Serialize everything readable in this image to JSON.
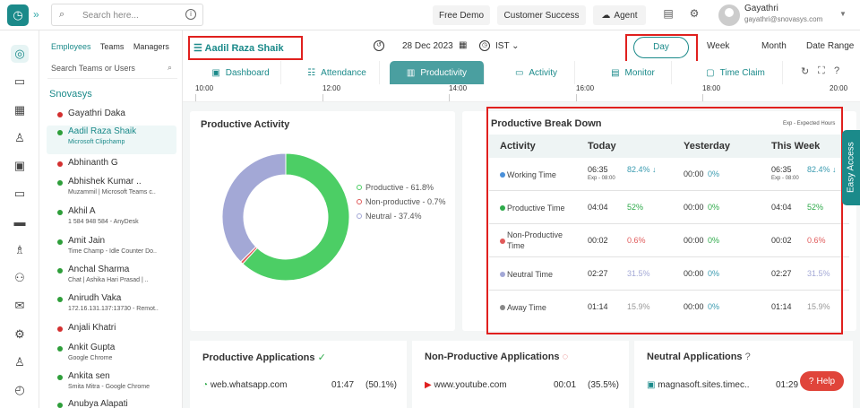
{
  "topbar": {
    "search_placeholder": "Search here...",
    "free_demo": "Free Demo",
    "customer_success": "Customer Success",
    "agent": "Agent",
    "user_name": "Gayathri",
    "user_email": "gayathri@snovasys.com"
  },
  "employee_panel": {
    "tabs": [
      "Employees",
      "Teams",
      "Managers"
    ],
    "search_placeholder": "Search Teams or Users",
    "team_name": "Snovasys",
    "employees": [
      {
        "name": "Gayathri Daka",
        "sub": "",
        "status_color": "#d32f2f"
      },
      {
        "name": "Aadil Raza Shaik",
        "sub": "Microsoft Clipchamp",
        "status_color": "#2e9e3a"
      },
      {
        "name": "Abhinanth G",
        "sub": "",
        "status_color": "#d32f2f"
      },
      {
        "name": "Abhishek Kumar ..",
        "sub": "Muzammil | Microsoft Teams c..",
        "status_color": "#2e9e3a"
      },
      {
        "name": "Akhil A",
        "sub": "1 584 948 584 - AnyDesk",
        "status_color": "#2e9e3a"
      },
      {
        "name": "Amit Jain",
        "sub": "Time Champ - Idle Counter Do..",
        "status_color": "#2e9e3a"
      },
      {
        "name": "Anchal Sharma",
        "sub": "Chat | Ashika Hari Prasad | ..",
        "status_color": "#2e9e3a"
      },
      {
        "name": "Anirudh Vaka",
        "sub": "172.16.131.137:13730 - Remot..",
        "status_color": "#2e9e3a"
      },
      {
        "name": "Anjali Khatri",
        "sub": "",
        "status_color": "#d32f2f"
      },
      {
        "name": "Ankit Gupta",
        "sub": "Google Chrome",
        "status_color": "#2e9e3a"
      },
      {
        "name": "Ankita sen",
        "sub": "Smita Mitra - Google Chrome",
        "status_color": "#2e9e3a"
      },
      {
        "name": "Anubya Alapati",
        "sub": "",
        "status_color": "#2e9e3a"
      }
    ]
  },
  "header": {
    "selected_user": "Aadil Raza Shaik",
    "date": "28 Dec 2023",
    "timezone": "IST",
    "periods": [
      "Day",
      "Week",
      "Month",
      "Date Range"
    ]
  },
  "tabs": [
    "Dashboard",
    "Attendance",
    "Productivity",
    "Activity",
    "Monitor",
    "Time Claim"
  ],
  "timeline": [
    "10:00",
    "12:00",
    "14:00",
    "16:00",
    "18:00",
    "20:00"
  ],
  "productive_activity": {
    "title": "Productive Activity",
    "legend": [
      {
        "label": "Productive - 61.8%",
        "color": "#4cce65"
      },
      {
        "label": "Non-productive - 0.7%",
        "color": "#e05a5a"
      },
      {
        "label": "Neutral - 37.4%",
        "color": "#a3a8d6"
      }
    ]
  },
  "chart_data": {
    "type": "pie",
    "title": "Productive Activity",
    "categories": [
      "Productive",
      "Non-productive",
      "Neutral"
    ],
    "values": [
      61.8,
      0.7,
      37.4
    ]
  },
  "breakdown": {
    "title": "Productive Break Down",
    "note": "Exp - Expected Hours",
    "headers": [
      "Activity",
      "Today",
      "Yesterday",
      "This Week"
    ],
    "rows": [
      {
        "activity": "Working Time",
        "color": "#4a90d9",
        "today": "06:35",
        "today_pct": "82.4% ↓",
        "today_exp": "Exp - 08:00",
        "yday": "00:00",
        "yday_pct": "0%",
        "week": "06:35",
        "week_pct": "82.4% ↓",
        "week_exp": "Exp - 08:00"
      },
      {
        "activity": "Productive Time",
        "color": "#2eaa4a",
        "today": "04:04",
        "today_pct": "52%",
        "today_exp": "",
        "yday": "00:00",
        "yday_pct": "0%",
        "week": "04:04",
        "week_pct": "52%",
        "week_exp": ""
      },
      {
        "activity": "Non-Productive Time",
        "color": "#e05a5a",
        "today": "00:02",
        "today_pct": "0.6%",
        "today_exp": "",
        "yday": "00:00",
        "yday_pct": "0%",
        "week": "00:02",
        "week_pct": "0.6%",
        "week_exp": ""
      },
      {
        "activity": "Neutral Time",
        "color": "#a3a8d6",
        "today": "02:27",
        "today_pct": "31.5%",
        "today_exp": "",
        "yday": "00:00",
        "yday_pct": "0%",
        "week": "02:27",
        "week_pct": "31.5%",
        "week_exp": ""
      },
      {
        "activity": "Away Time",
        "color": "#888888",
        "today": "01:14",
        "today_pct": "15.9%",
        "today_exp": "",
        "yday": "00:00",
        "yday_pct": "0%",
        "week": "01:14",
        "week_pct": "15.9%",
        "week_exp": ""
      }
    ]
  },
  "apps": {
    "productive": {
      "title": "Productive Applications",
      "item": "web.whatsapp.com",
      "time": "01:47",
      "pct": "(50.1%)"
    },
    "non_productive": {
      "title": "Non-Productive Applications",
      "item": "www.youtube.com",
      "time": "00:01",
      "pct": "(35.5%)"
    },
    "neutral": {
      "title": "Neutral Applications",
      "item": "magnasoft.sites.timec..",
      "time": "01:29"
    }
  },
  "easy_access": "Easy Access",
  "help": "Help"
}
